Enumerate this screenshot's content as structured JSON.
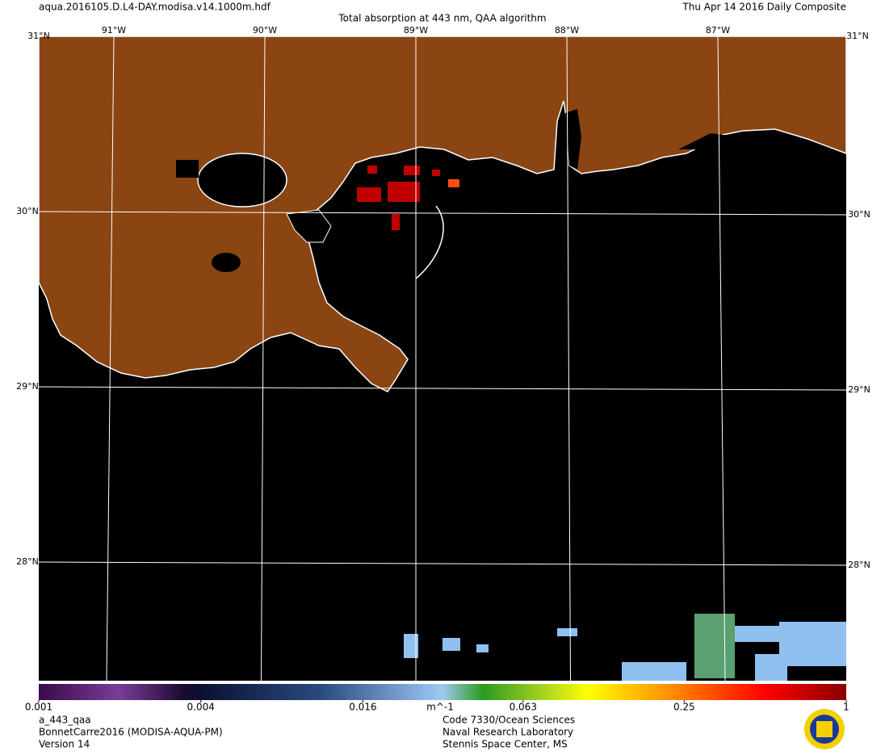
{
  "header": {
    "file": "aqua.2016105.D.L4-DAY.modisa.v14.1000m.hdf",
    "title": "Total absorption at 443 nm, QAA algorithm",
    "date": "Thu Apr 14 2016 Daily Composite"
  },
  "map": {
    "corner_label": "31°N",
    "longitudes": [
      {
        "value": -91,
        "label": "91°W"
      },
      {
        "value": -90,
        "label": "90°W"
      },
      {
        "value": -89,
        "label": "89°W"
      },
      {
        "value": -88,
        "label": "88°W"
      },
      {
        "value": -87,
        "label": "87°W"
      }
    ],
    "latitudes": [
      {
        "value": 30,
        "label": "30°N"
      },
      {
        "value": 29,
        "label": "29°N"
      },
      {
        "value": 28,
        "label": "28°N"
      }
    ]
  },
  "colorbar": {
    "scale": "log",
    "range": [
      0.001,
      1
    ],
    "ticks": [
      0.001,
      0.004,
      0.016,
      0.063,
      0.25,
      1
    ],
    "unit": "m^-1"
  },
  "footer": {
    "left": [
      "a_443_qaa",
      "BonnetCarre2016 (MODISA-AQUA-PM)",
      "Version 14"
    ],
    "center": [
      "Code 7330/Ocean Sciences",
      "Naval Research Laboratory",
      "Stennis Space Center, MS"
    ]
  }
}
